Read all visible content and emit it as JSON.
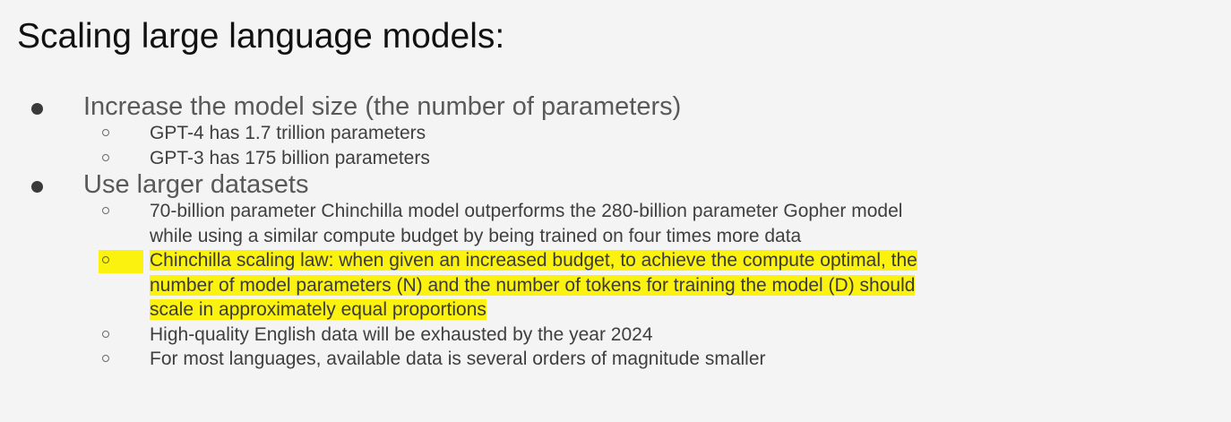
{
  "title": "Scaling large language models:",
  "bullets": [
    {
      "text": "Increase the model size (the number of parameters)",
      "sub": [
        {
          "lines": [
            "GPT-4 has 1.7 trillion parameters"
          ]
        },
        {
          "lines": [
            "GPT-3 has 175 billion parameters"
          ]
        }
      ]
    },
    {
      "text": "Use larger datasets",
      "sub": [
        {
          "lines": [
            "70-billion parameter Chinchilla model outperforms the 280-billion parameter Gopher model",
            "while using a similar compute budget by being trained on four times more data"
          ]
        },
        {
          "highlighted": true,
          "highlight_color": "#fcf20f",
          "lines": [
            "Chinchilla scaling law: when given an increased budget, to achieve the compute optimal, the",
            "number of model parameters (N) and the number of tokens for training the model (D) should",
            "scale in approximately equal proportions"
          ]
        },
        {
          "lines": [
            "High-quality English data will be exhausted by the year 2024"
          ]
        },
        {
          "lines": [
            "For most languages, available data is several orders of magnitude smaller"
          ]
        }
      ]
    }
  ]
}
